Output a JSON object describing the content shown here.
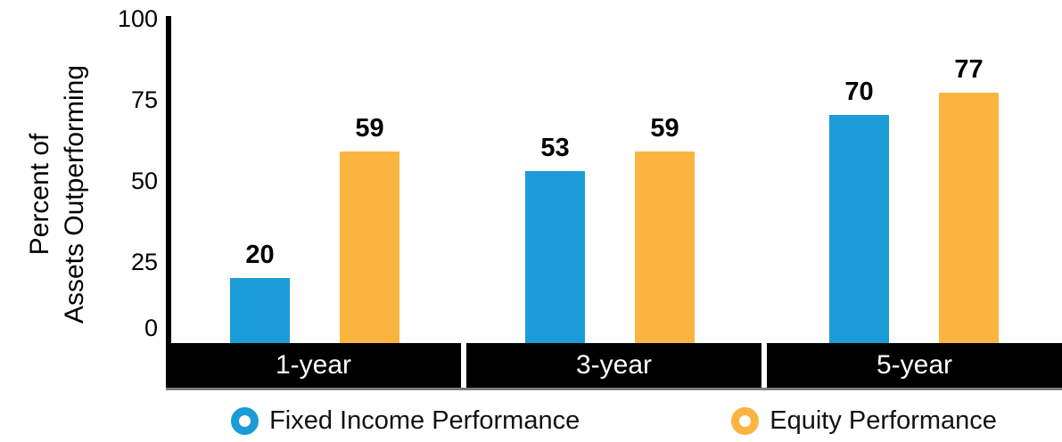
{
  "chart_data": {
    "type": "bar",
    "categories": [
      "1-year",
      "3-year",
      "5-year"
    ],
    "series": [
      {
        "name": "Fixed Income Performance",
        "color": "#1b9cd8",
        "values": [
          20,
          53,
          70
        ]
      },
      {
        "name": "Equity Performance",
        "color": "#fbb440",
        "values": [
          59,
          59,
          77
        ]
      }
    ],
    "ylabel_lines": [
      "Percent of",
      "Assets Outperforming"
    ],
    "ylabel": "Percent of Assets Outperforming",
    "y_ticks": [
      0,
      25,
      50,
      75,
      100
    ],
    "ylim": [
      0,
      100
    ],
    "bar_value_labels": [
      [
        20,
        53,
        70
      ],
      [
        59,
        59,
        77
      ]
    ],
    "legend_position": "bottom",
    "grid": false,
    "colors": {
      "fixed_income": "#1b9cd8",
      "equity": "#fbb440",
      "axis": "#000000",
      "category_band_bg": "#000000",
      "category_band_text": "#ffffff",
      "band_shadow": "#7d7d7d"
    }
  }
}
